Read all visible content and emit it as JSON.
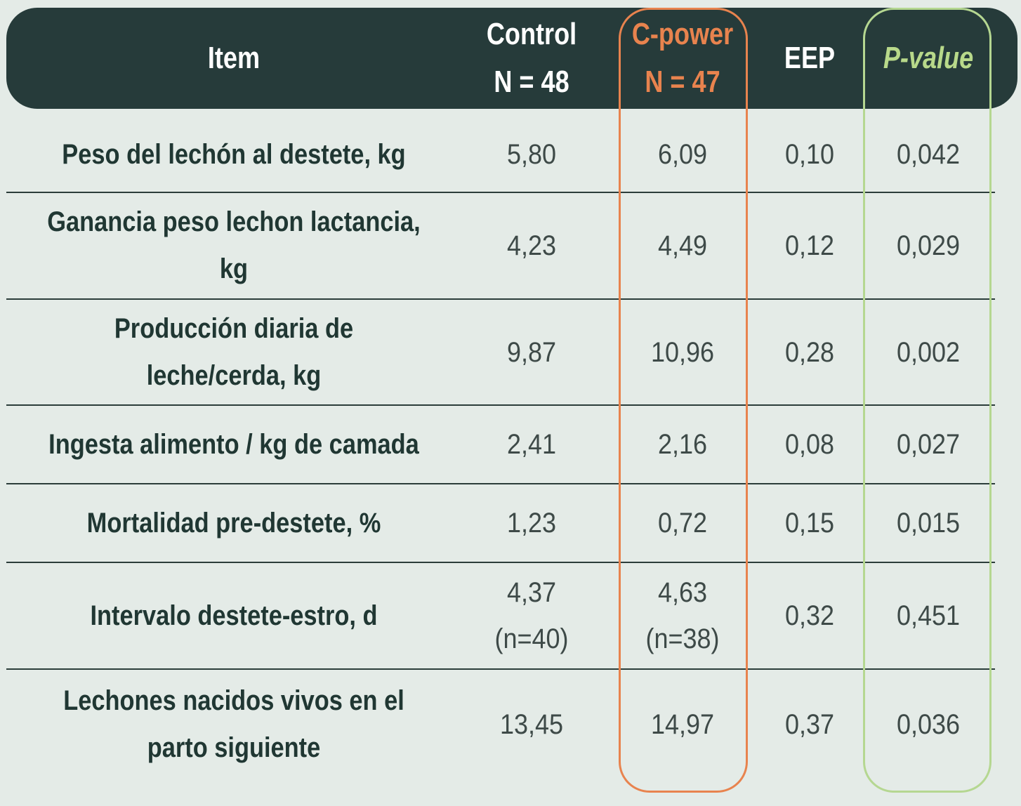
{
  "header": {
    "item": "Item",
    "control_line1": "Control",
    "control_line2": "N = 48",
    "cpower_line1": "C-power",
    "cpower_line2": "N = 47",
    "eep": "EEP",
    "pvalue": "P-value"
  },
  "rows": [
    {
      "item_lines": [
        "Peso del lechón al destete, kg"
      ],
      "control": [
        "5,80"
      ],
      "cpower": [
        "6,09"
      ],
      "eep": "0,10",
      "pvalue": "0,042"
    },
    {
      "item_lines": [
        "Ganancia peso lechon lactancia,",
        "kg"
      ],
      "control": [
        "4,23"
      ],
      "cpower": [
        "4,49"
      ],
      "eep": "0,12",
      "pvalue": "0,029"
    },
    {
      "item_lines": [
        "Producción diaria de",
        "leche/cerda, kg"
      ],
      "control": [
        "9,87"
      ],
      "cpower": [
        "10,96"
      ],
      "eep": "0,28",
      "pvalue": "0,002"
    },
    {
      "item_lines": [
        "Ingesta alimento / kg de camada"
      ],
      "control": [
        "2,41"
      ],
      "cpower": [
        "2,16"
      ],
      "eep": "0,08",
      "pvalue": "0,027"
    },
    {
      "item_lines": [
        "Mortalidad pre-destete, %"
      ],
      "control": [
        "1,23"
      ],
      "cpower": [
        "0,72"
      ],
      "eep": "0,15",
      "pvalue": "0,015"
    },
    {
      "item_lines": [
        "Intervalo destete-estro, d"
      ],
      "control": [
        "4,37",
        "(n=40)"
      ],
      "cpower": [
        "4,63",
        "(n=38)"
      ],
      "eep": "0,32",
      "pvalue": "0,451"
    },
    {
      "item_lines": [
        "Lechones nacidos vivos en el",
        "parto siguiente"
      ],
      "control": [
        "13,45"
      ],
      "cpower": [
        "14,97"
      ],
      "eep": "0,37",
      "pvalue": "0,036"
    }
  ],
  "colors": {
    "header_bg": "#263b3a",
    "page_bg": "#e4ebe7",
    "cpower_accent": "#e8834e",
    "pvalue_accent": "#b5d791"
  }
}
